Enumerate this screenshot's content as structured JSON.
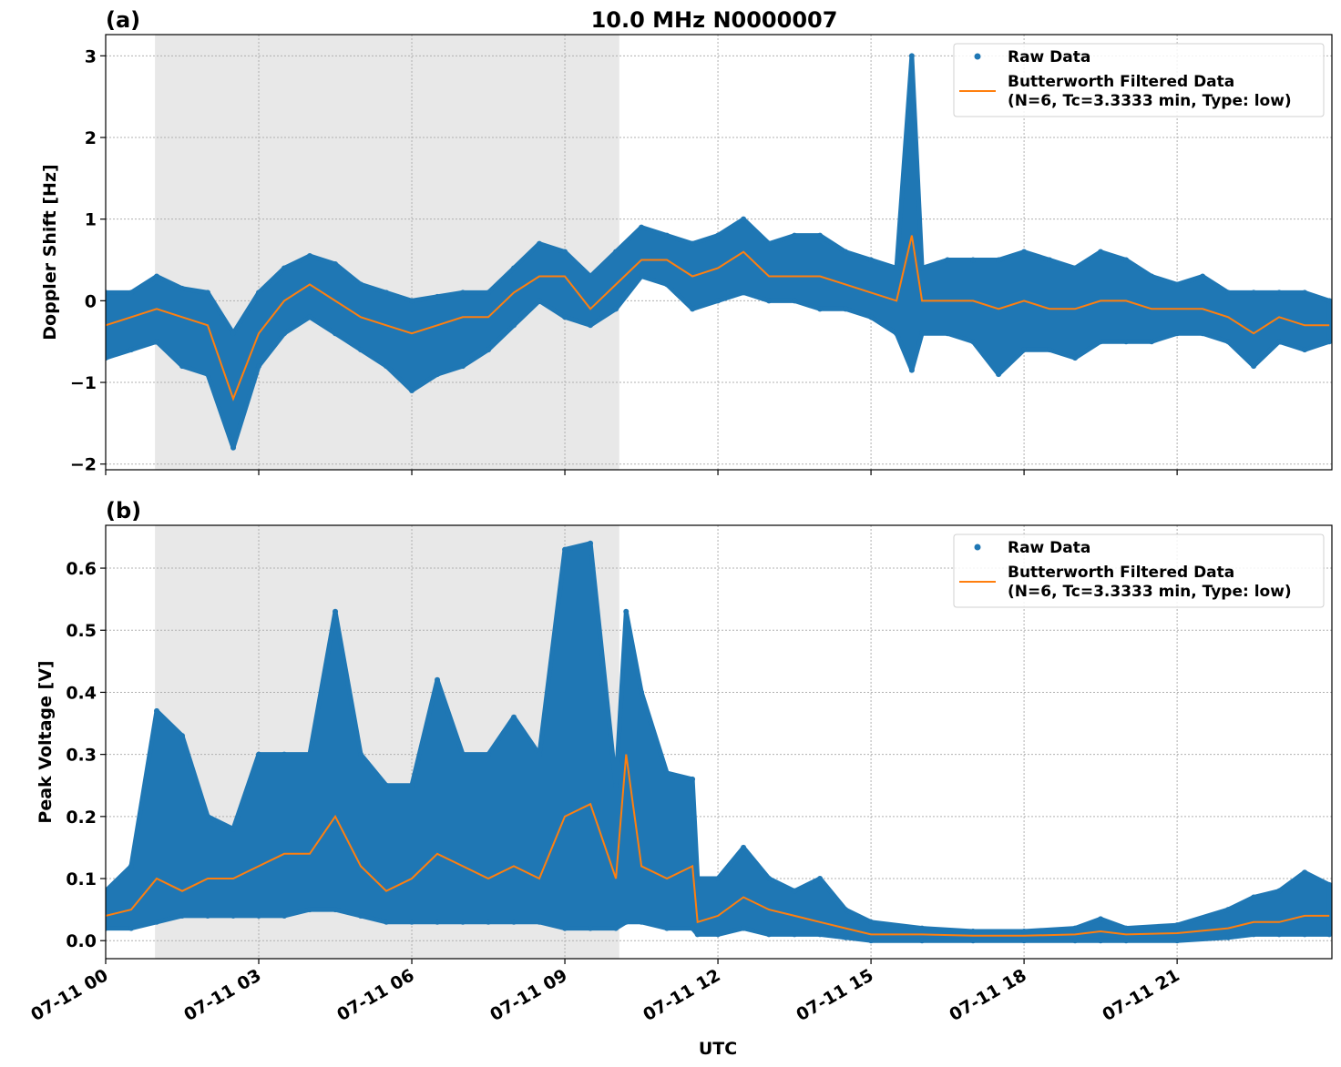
{
  "chart_data": [
    {
      "type": "scatter",
      "panel_label": "(a)",
      "title": "10.0 MHz N0000007",
      "xlabel": "",
      "ylabel": "Doppler Shift [Hz]",
      "ylim": [
        -2.07,
        3.26
      ],
      "xlim": [
        "07-11 00:00",
        "07-12 00:02"
      ],
      "yticks": [
        "3",
        "2",
        "1",
        "0",
        "−1",
        "−2"
      ],
      "ytick_values": [
        3,
        2,
        1,
        0,
        -1,
        -2
      ],
      "xticks": [
        "07-11 00",
        "07-11 03",
        "07-11 06",
        "07-11 09",
        "07-11 12",
        "07-11 15",
        "07-11 18",
        "07-11 21"
      ],
      "grid": true,
      "shaded_span": [
        "00:58",
        "10:04"
      ],
      "legend": {
        "placement": "top-right",
        "entries": [
          "Raw Data",
          "Butterworth Filtered Data",
          "(N=6, Tc=3.3333 min, Type: low)"
        ]
      },
      "colors": {
        "raw": "#1f77b4",
        "filtered": "#ff7f0e",
        "shade": "#e8e8e8"
      },
      "x": [
        "00:00",
        "00:30",
        "01:00",
        "01:30",
        "02:00",
        "02:30",
        "03:00",
        "03:30",
        "04:00",
        "04:30",
        "05:00",
        "05:30",
        "06:00",
        "06:30",
        "07:00",
        "07:30",
        "08:00",
        "08:30",
        "09:00",
        "09:30",
        "10:00",
        "10:30",
        "11:00",
        "11:30",
        "12:00",
        "12:30",
        "13:00",
        "13:30",
        "14:00",
        "14:30",
        "15:00",
        "15:30",
        "15:48",
        "16:00",
        "16:30",
        "17:00",
        "17:30",
        "18:00",
        "18:30",
        "19:00",
        "19:30",
        "20:00",
        "20:30",
        "21:00",
        "21:30",
        "22:00",
        "22:30",
        "23:00",
        "23:30",
        "23:59"
      ],
      "series": [
        {
          "name": "Butterworth Filtered Data",
          "values": [
            -0.3,
            -0.2,
            -0.1,
            -0.2,
            -0.3,
            -1.2,
            -0.4,
            0.0,
            0.2,
            0.0,
            -0.2,
            -0.3,
            -0.4,
            -0.3,
            -0.2,
            -0.2,
            0.1,
            0.3,
            0.3,
            -0.1,
            0.2,
            0.5,
            0.5,
            0.3,
            0.4,
            0.6,
            0.3,
            0.3,
            0.3,
            0.2,
            0.1,
            0.0,
            0.8,
            0.0,
            0.0,
            0.0,
            -0.1,
            0.0,
            -0.1,
            -0.1,
            0.0,
            0.0,
            -0.1,
            -0.1,
            -0.1,
            -0.2,
            -0.4,
            -0.2,
            -0.3,
            -0.3
          ]
        },
        {
          "name": "Raw Data",
          "min": [
            -0.7,
            -0.6,
            -0.5,
            -0.8,
            -0.9,
            -1.8,
            -0.8,
            -0.4,
            -0.2,
            -0.4,
            -0.6,
            -0.8,
            -1.1,
            -0.9,
            -0.8,
            -0.6,
            -0.3,
            0.0,
            -0.2,
            -0.3,
            -0.1,
            0.3,
            0.2,
            -0.1,
            0.0,
            0.1,
            0.0,
            0.0,
            -0.1,
            -0.1,
            -0.2,
            -0.4,
            -0.85,
            -0.4,
            -0.4,
            -0.5,
            -0.9,
            -0.6,
            -0.6,
            -0.7,
            -0.5,
            -0.5,
            -0.5,
            -0.4,
            -0.4,
            -0.5,
            -0.8,
            -0.5,
            -0.6,
            -0.5
          ],
          "max": [
            0.1,
            0.1,
            0.3,
            0.15,
            0.1,
            -0.4,
            0.1,
            0.4,
            0.55,
            0.45,
            0.2,
            0.1,
            0.0,
            0.05,
            0.1,
            0.1,
            0.4,
            0.7,
            0.6,
            0.3,
            0.6,
            0.9,
            0.8,
            0.7,
            0.8,
            1.0,
            0.7,
            0.8,
            0.8,
            0.6,
            0.5,
            0.4,
            3.0,
            0.4,
            0.5,
            0.5,
            0.5,
            0.6,
            0.5,
            0.4,
            0.6,
            0.5,
            0.3,
            0.2,
            0.3,
            0.1,
            0.1,
            0.1,
            0.1,
            0.0
          ]
        }
      ]
    },
    {
      "type": "scatter",
      "panel_label": "(b)",
      "xlabel": "UTC",
      "ylabel": "Peak Voltage [V]",
      "ylim": [
        -0.029,
        0.669
      ],
      "xlim": [
        "07-11 00:00",
        "07-12 00:02"
      ],
      "yticks": [
        "0.0",
        "0.1",
        "0.2",
        "0.3",
        "0.4",
        "0.5",
        "0.6"
      ],
      "ytick_values": [
        0,
        0.1,
        0.2,
        0.3,
        0.4,
        0.5,
        0.6
      ],
      "xticks": [
        "07-11 00",
        "07-11 03",
        "07-11 06",
        "07-11 09",
        "07-11 12",
        "07-11 15",
        "07-11 18",
        "07-11 21"
      ],
      "grid": true,
      "shaded_span": [
        "00:58",
        "10:04"
      ],
      "legend": {
        "placement": "top-right",
        "entries": [
          "Raw Data",
          "Butterworth Filtered Data",
          "(N=6, Tc=3.3333 min, Type: low)"
        ]
      },
      "colors": {
        "raw": "#1f77b4",
        "filtered": "#ff7f0e",
        "shade": "#e8e8e8"
      },
      "x": [
        "00:00",
        "00:30",
        "01:00",
        "01:30",
        "02:00",
        "02:30",
        "03:00",
        "03:30",
        "04:00",
        "04:30",
        "05:00",
        "05:30",
        "06:00",
        "06:30",
        "07:00",
        "07:30",
        "08:00",
        "08:30",
        "09:00",
        "09:30",
        "10:00",
        "10:12",
        "10:30",
        "11:00",
        "11:30",
        "11:36",
        "12:00",
        "12:30",
        "13:00",
        "13:30",
        "14:00",
        "14:30",
        "15:00",
        "16:00",
        "17:00",
        "18:00",
        "19:00",
        "19:30",
        "20:00",
        "21:00",
        "22:00",
        "22:30",
        "23:00",
        "23:30",
        "23:59"
      ],
      "series": [
        {
          "name": "Butterworth Filtered Data",
          "values": [
            0.04,
            0.05,
            0.1,
            0.08,
            0.1,
            0.1,
            0.12,
            0.14,
            0.14,
            0.2,
            0.12,
            0.08,
            0.1,
            0.14,
            0.12,
            0.1,
            0.12,
            0.1,
            0.2,
            0.22,
            0.1,
            0.3,
            0.12,
            0.1,
            0.12,
            0.03,
            0.04,
            0.07,
            0.05,
            0.04,
            0.03,
            0.02,
            0.01,
            0.01,
            0.008,
            0.008,
            0.01,
            0.015,
            0.01,
            0.012,
            0.02,
            0.03,
            0.03,
            0.04,
            0.04
          ]
        },
        {
          "name": "Raw Data",
          "min": [
            0.02,
            0.02,
            0.03,
            0.04,
            0.04,
            0.04,
            0.04,
            0.04,
            0.05,
            0.05,
            0.04,
            0.03,
            0.03,
            0.03,
            0.03,
            0.03,
            0.03,
            0.03,
            0.02,
            0.02,
            0.02,
            0.03,
            0.03,
            0.02,
            0.02,
            0.01,
            0.01,
            0.02,
            0.01,
            0.01,
            0.01,
            0.005,
            0.0,
            0.0,
            0.0,
            0.0,
            0.0,
            0.0,
            0.0,
            0.0,
            0.005,
            0.01,
            0.01,
            0.01,
            0.01
          ],
          "max": [
            0.08,
            0.12,
            0.37,
            0.33,
            0.2,
            0.18,
            0.3,
            0.3,
            0.3,
            0.53,
            0.3,
            0.25,
            0.25,
            0.42,
            0.3,
            0.3,
            0.36,
            0.3,
            0.63,
            0.64,
            0.25,
            0.53,
            0.4,
            0.27,
            0.26,
            0.1,
            0.1,
            0.15,
            0.1,
            0.08,
            0.1,
            0.05,
            0.03,
            0.02,
            0.015,
            0.015,
            0.02,
            0.035,
            0.02,
            0.025,
            0.05,
            0.07,
            0.08,
            0.11,
            0.09
          ]
        }
      ]
    }
  ]
}
